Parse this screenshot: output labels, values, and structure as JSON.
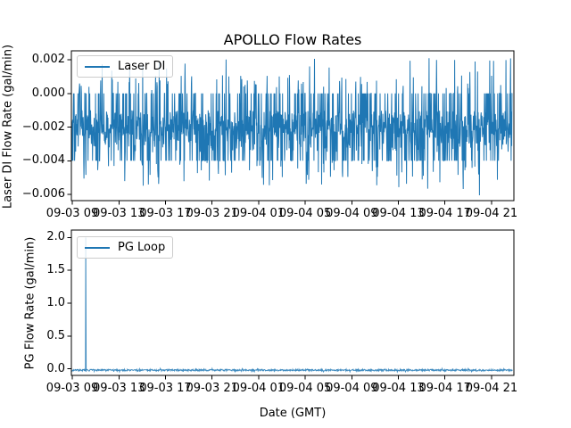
{
  "figure": {
    "background": "#ffffff",
    "accent_line_color": "#1f77b4"
  },
  "chart_data": [
    {
      "type": "line",
      "title": "APOLLO Flow Rates",
      "ylabel": "Laser DI Flow Rate (gal/min)",
      "legend": [
        "Laser DI"
      ],
      "legend_position": "upper left",
      "line_color": "#1f77b4",
      "x_tick_labels": [
        "09-03 09",
        "09-03 13",
        "09-03 17",
        "09-03 21",
        "09-04 01",
        "09-04 05",
        "09-04 09",
        "09-04 13",
        "09-04 17",
        "09-04 21"
      ],
      "x_tick_hours": [
        9,
        13,
        17,
        21,
        25,
        29,
        33,
        37,
        41,
        45
      ],
      "xlim_hours": [
        8.92,
        46.92
      ],
      "y_tick_labels": [
        "0.002",
        "0.000",
        "−0.002",
        "−0.004",
        "−0.006"
      ],
      "y_tick_values": [
        0.002,
        0.0,
        -0.002,
        -0.004,
        -0.006
      ],
      "ylim": [
        -0.00637,
        0.00253
      ],
      "grid": false,
      "series": {
        "name": "Laser DI",
        "kind": "dense-noise",
        "description": "continuous noisy flow signal, dense band between -0.004 and 0.000 gal/min, occasional spikes up to ~0.002 and down to ~-0.006",
        "baseline": -0.002,
        "observed_max": 0.0021,
        "observed_min": -0.0061,
        "x_hours_range": [
          8.96,
          46.78
        ],
        "points": 1600,
        "seed": 42,
        "levels": [
          {
            "p": 0.4,
            "min": -0.0025,
            "max": -0.001
          },
          {
            "p": 0.28,
            "min": -0.0035,
            "max": -0.0018
          },
          {
            "p": 0.12,
            "min": 0.0,
            "max": 0.0
          },
          {
            "p": 0.1,
            "min": -0.004,
            "max": -0.004
          },
          {
            "p": 0.045,
            "min": 0.0002,
            "max": 0.0011
          },
          {
            "p": 0.007,
            "min": 0.0018,
            "max": 0.0021
          },
          {
            "p": 0.006,
            "min": 0.0012,
            "max": 0.0018
          },
          {
            "p": 0.03,
            "min": -0.005,
            "max": -0.0041
          },
          {
            "p": 0.009,
            "min": -0.0055,
            "max": -0.005
          },
          {
            "p": 0.003,
            "min": -0.0061,
            "max": -0.0055
          }
        ]
      }
    },
    {
      "type": "line",
      "title": "",
      "ylabel": "PG Flow Rate (gal/min)",
      "xlabel": "Date (GMT)",
      "legend": [
        "PG Loop"
      ],
      "legend_position": "upper left",
      "line_color": "#1f77b4",
      "x_tick_labels": [
        "09-03 09",
        "09-03 13",
        "09-03 17",
        "09-03 21",
        "09-04 01",
        "09-04 05",
        "09-04 09",
        "09-04 13",
        "09-04 17",
        "09-04 21"
      ],
      "x_tick_hours": [
        9,
        13,
        17,
        21,
        25,
        29,
        33,
        37,
        41,
        45
      ],
      "xlim_hours": [
        8.92,
        46.92
      ],
      "y_tick_labels": [
        "2.0",
        "1.5",
        "1.0",
        "0.5",
        "0.0"
      ],
      "y_tick_values": [
        2.0,
        1.5,
        1.0,
        0.5,
        0.0
      ],
      "ylim": [
        -0.1,
        2.114
      ],
      "grid": false,
      "series": {
        "name": "PG Loop",
        "kind": "flat-with-spike",
        "description": "flat noisy baseline just below 0 gal/min with a single spike to ~2.0 shortly after 09-03 10:00",
        "baseline": -0.02,
        "spike": {
          "hour": 10.15,
          "time_label": "09-03 ~10:10",
          "value": 2.0
        },
        "x_hours_range": [
          8.96,
          46.78
        ],
        "points": 1200,
        "seed": 7,
        "line_opacity": 0.85,
        "levels": [
          {
            "p": 0.93,
            "min": -0.032,
            "max": -0.008
          },
          {
            "p": 0.05,
            "min": -0.045,
            "max": -0.03
          },
          {
            "p": 0.02,
            "min": -0.008,
            "max": 0.005
          }
        ]
      }
    }
  ]
}
